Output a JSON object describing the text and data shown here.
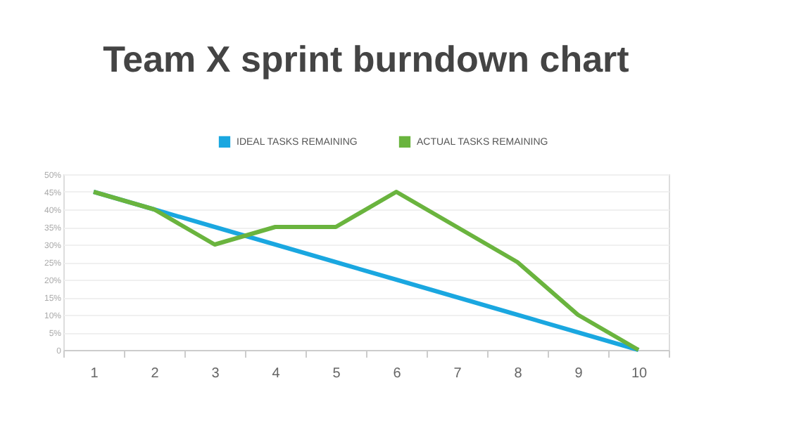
{
  "chart_data": {
    "type": "line",
    "title": "Team X sprint burndown chart",
    "categories": [
      "1",
      "2",
      "3",
      "4",
      "5",
      "6",
      "7",
      "8",
      "9",
      "10"
    ],
    "series": [
      {
        "name": "IDEAL TASKS REMAINING",
        "color": "#1aa7e0",
        "values": [
          45,
          40,
          35,
          30,
          25,
          20,
          15,
          10,
          5,
          0
        ]
      },
      {
        "name": "ACTUAL TASKS REMAINING",
        "color": "#6ab43e",
        "values": [
          45,
          40,
          30,
          35,
          35,
          45,
          35,
          25,
          10,
          0
        ]
      }
    ],
    "ylim": [
      0,
      50
    ],
    "yticks": [
      0,
      {
        "value": 5,
        "label": "5%"
      },
      {
        "value": 10,
        "label": "10%"
      },
      {
        "value": 15,
        "label": "15%"
      },
      {
        "value": 20,
        "label": "20%"
      },
      {
        "value": 25,
        "label": "25%"
      },
      {
        "value": 30,
        "label": "30%"
      },
      {
        "value": 35,
        "label": "35%"
      },
      {
        "value": 40,
        "label": "40%"
      },
      {
        "value": 45,
        "label": "45%"
      },
      {
        "value": 50,
        "label": "50%"
      }
    ],
    "grid": "y",
    "legend": "top",
    "marker": "none",
    "line_style": "solid"
  }
}
